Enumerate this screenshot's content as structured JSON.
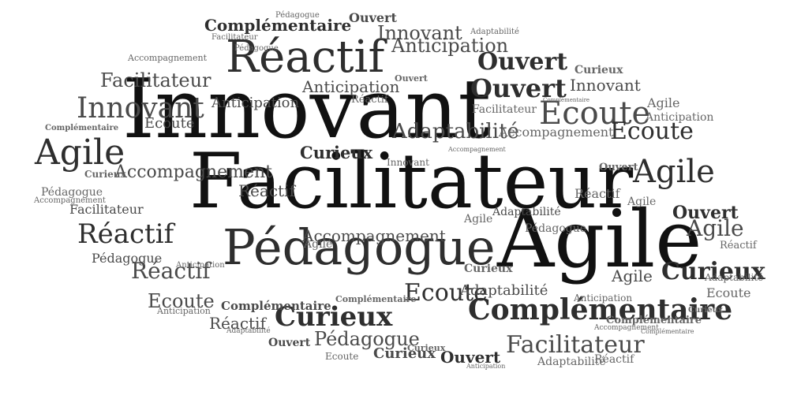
{
  "word_cloud": {
    "words": [
      "Innovant",
      "Facilitateur",
      "Agile",
      "Pédagogue",
      "Réactif",
      "Ecoute",
      "Curieux",
      "Complémentaire",
      "Ouvert",
      "Anticipation",
      "Adaptabilité",
      "Accompagnement",
      "Innovant",
      "Innovant",
      "Innovant",
      "Innovant",
      "Facilitateur",
      "Facilitateur",
      "Facilitateur",
      "Facilitateur",
      "Facilitateur",
      "Agile",
      "Agile",
      "Agile",
      "Agile",
      "Agile",
      "Agile",
      "Agile",
      "Agile",
      "Réactif",
      "Réactif",
      "Réactif",
      "Réactif",
      "Réactif",
      "Réactif",
      "Réactif",
      "Réactif",
      "Ecoute",
      "Ecoute",
      "Ecoute",
      "Ecoute",
      "Ecoute",
      "Ecoute",
      "Pédagogue",
      "Pédagogue",
      "Pédagogue",
      "Pédagogue",
      "Pédagogue",
      "Pédagogue",
      "Ouvert",
      "Ouvert",
      "Ouvert",
      "Ouvert",
      "Ouvert",
      "Ouvert",
      "Ouvert",
      "Curieux",
      "Curieux",
      "Curieux",
      "Curieux",
      "Curieux",
      "Curieux",
      "Curieux",
      "Curieux",
      "Complémentaire",
      "Complémentaire",
      "Complémentaire",
      "Complémentaire",
      "Complémentaire",
      "Complémentaire",
      "Complémentaire",
      "Anticipation",
      "Anticipation",
      "Anticipation",
      "Anticipation",
      "Anticipation",
      "Anticipation",
      "Anticipation",
      "Adaptabilité",
      "Adaptabilité",
      "Adaptabilité",
      "Adaptabilité",
      "Adaptabilité",
      "Adaptabilité",
      "Accompagnement",
      "Accompagnement",
      "Accompagnement",
      "Accompagnement",
      "Accompagnement",
      "Accompagnement"
    ]
  }
}
